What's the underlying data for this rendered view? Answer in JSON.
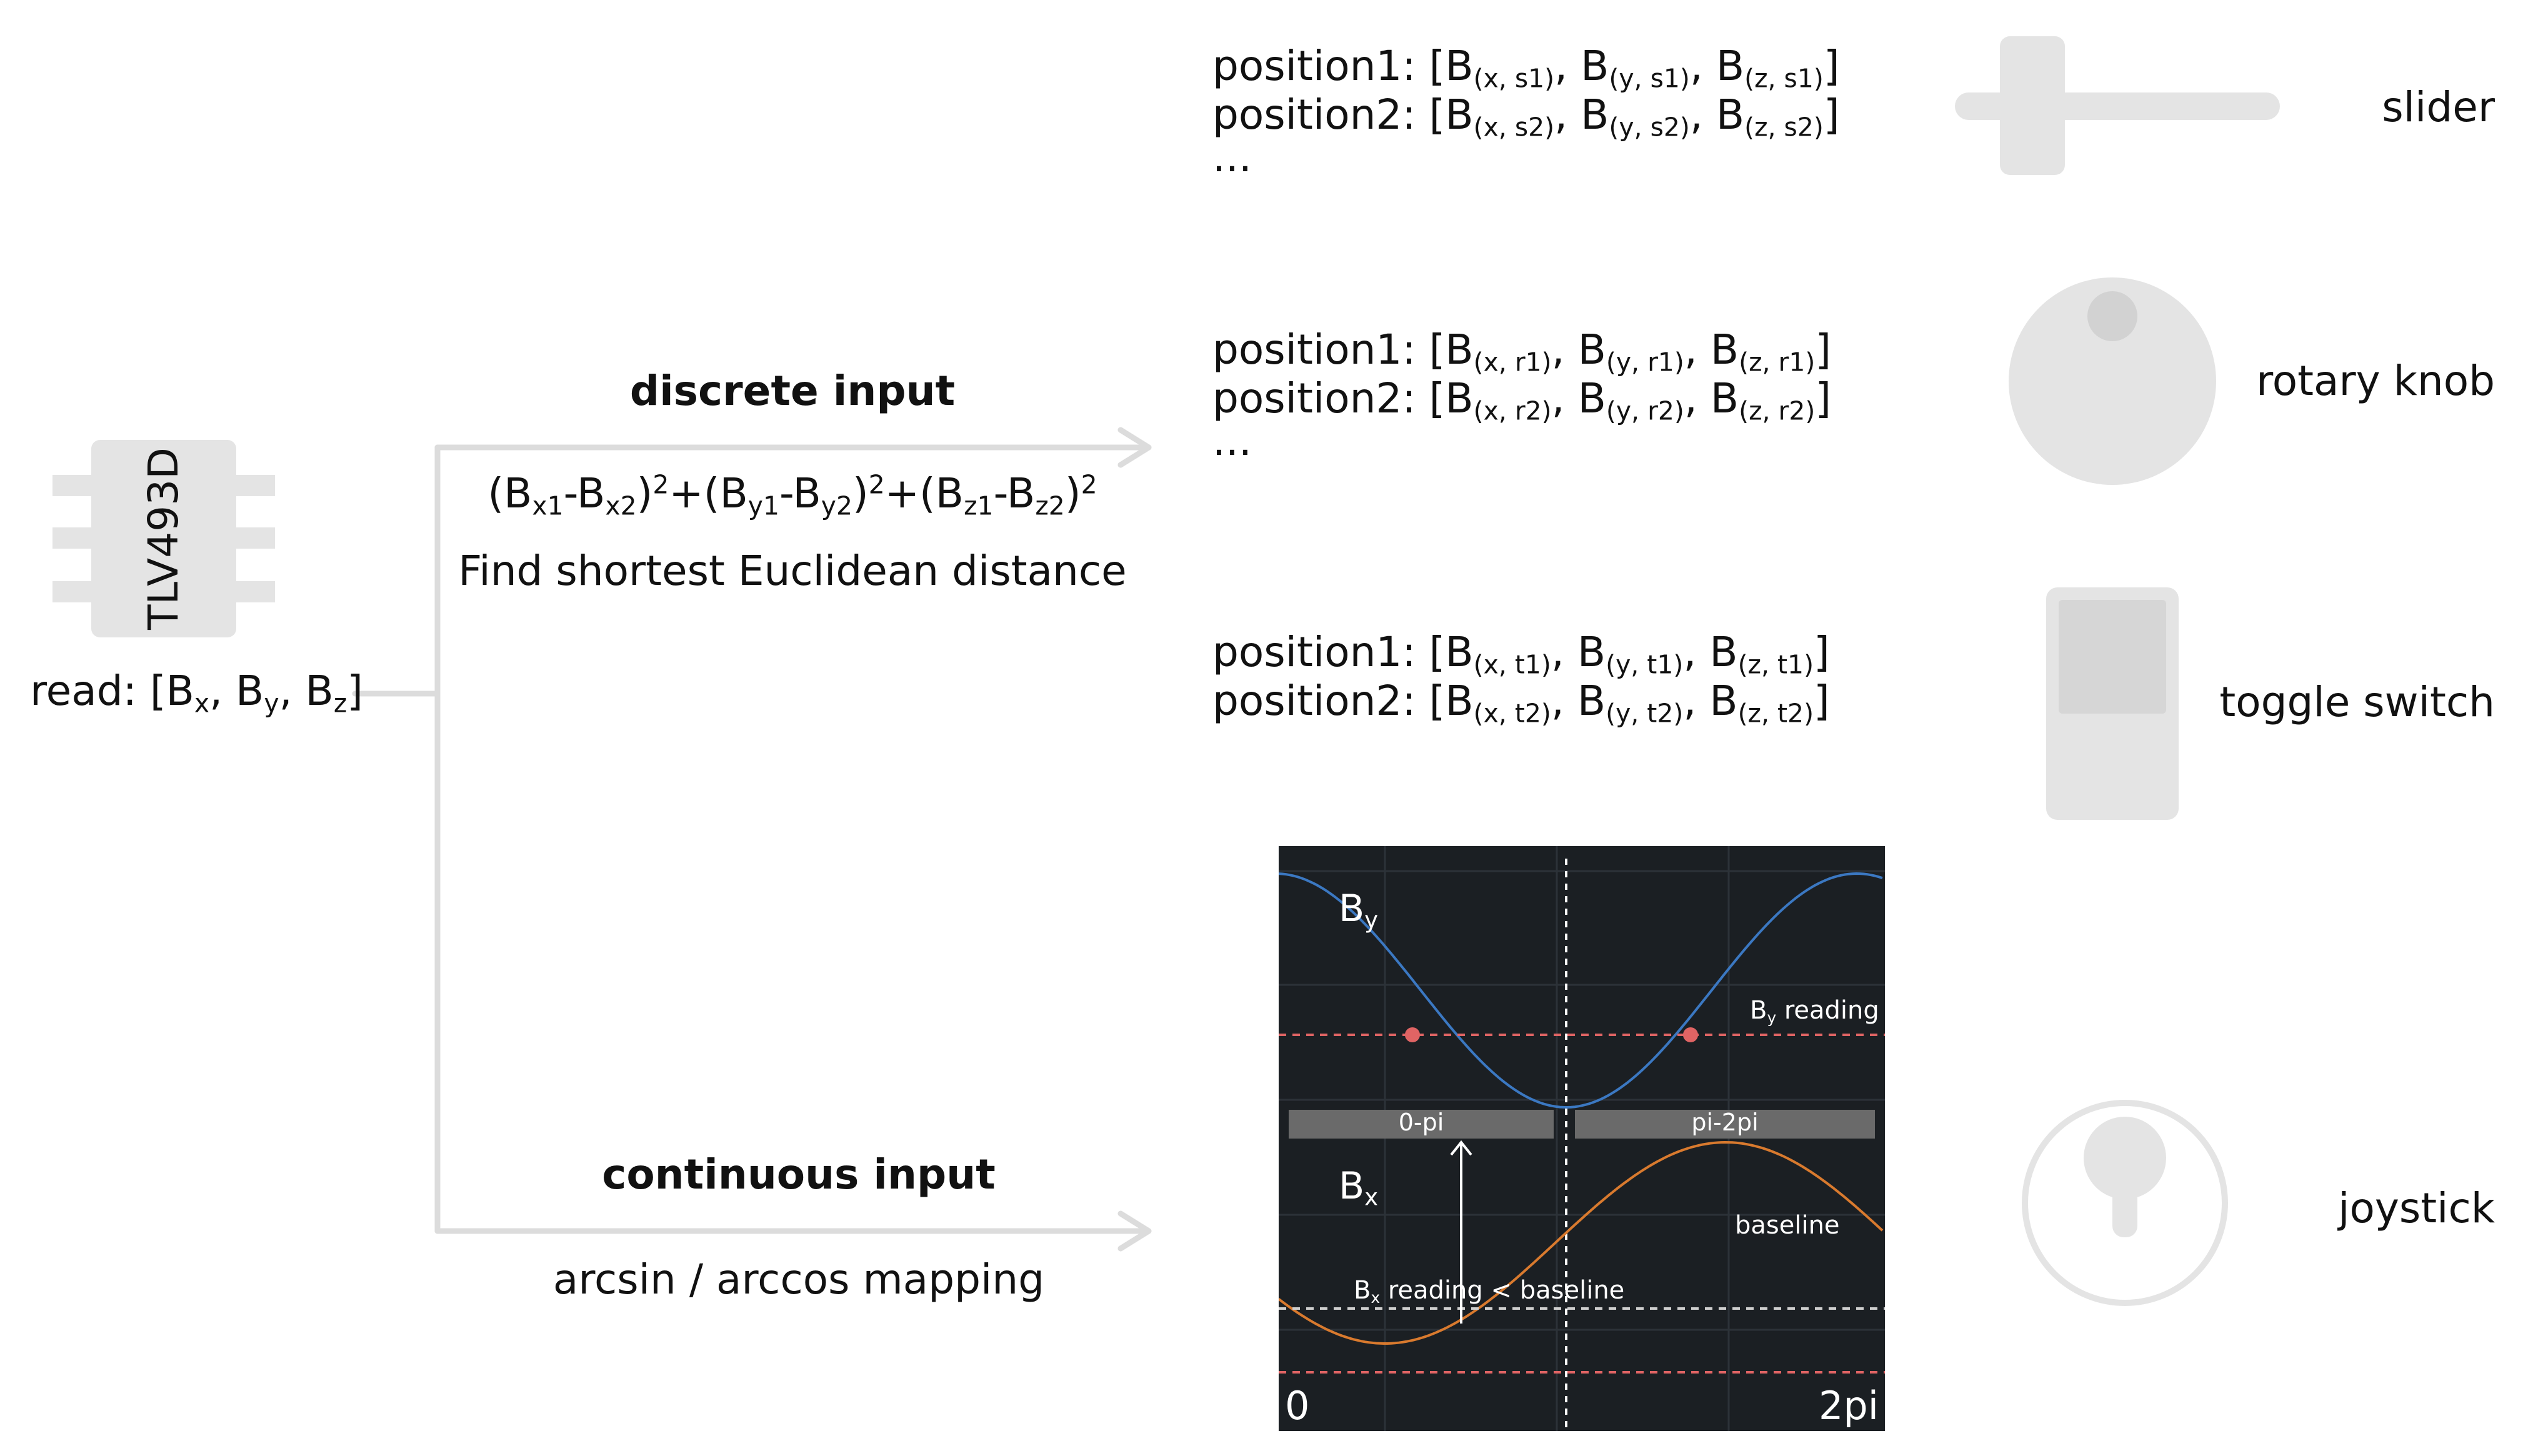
{
  "chip": {
    "label": "TLV493D",
    "read": {
      "prefix": "read: [B",
      "x": "x",
      "sep1": ", B",
      "y": "y",
      "sep2": ", B",
      "z": "z",
      "suffix": "]"
    }
  },
  "discrete": {
    "title": "discrete input",
    "formula": {
      "p1": "(B",
      "s1": "x1",
      "p2": "-B",
      "s2": "x2",
      "p3": ")",
      "e1": "2",
      "p4": "+(B",
      "s3": "y1",
      "p5": "-B",
      "s4": "y2",
      "p6": ")",
      "e2": "2",
      "p7": "+(B",
      "s5": "z1",
      "p8": "-B",
      "s6": "z2",
      "p9": ")",
      "e3": "2"
    },
    "description": "Find shortest Euclidean distance"
  },
  "continuous": {
    "title": "continuous input",
    "description": "arcsin / arccos mapping"
  },
  "position_groups": [
    {
      "rows": [
        {
          "lead": "position1: [B",
          "a": "(x, s1)",
          "b": "(y, s1)",
          "c": "(z, s1)"
        },
        {
          "lead": "position2: [B",
          "a": "(x, s2)",
          "b": "(y, s2)",
          "c": "(z, s2)"
        }
      ],
      "ellipsis": "..."
    },
    {
      "rows": [
        {
          "lead": "position1: [B",
          "a": "(x, r1)",
          "b": "(y, r1)",
          "c": "(z, r1)"
        },
        {
          "lead": "position2: [B",
          "a": "(x, r2)",
          "b": "(y, r2)",
          "c": "(z, r2)"
        }
      ],
      "ellipsis": "..."
    },
    {
      "rows": [
        {
          "lead": "position1: [B",
          "a": "(x, t1)",
          "b": "(y, t1)",
          "c": "(z, t1)"
        },
        {
          "lead": "position2: [B",
          "a": "(x, t2)",
          "b": "(y, t2)",
          "c": "(z, t2)"
        }
      ]
    }
  ],
  "sep": ", B",
  "close": "]",
  "devices": {
    "slider": "slider",
    "rotary_knob": "rotary knob",
    "toggle_switch": "toggle switch",
    "joystick": "joystick"
  },
  "plot": {
    "by_label": "B",
    "by_sub": "y",
    "bx_label": "B",
    "bx_sub": "x",
    "by_reading": "B",
    "by_reading_sub": "y",
    "by_reading_suffix": " reading",
    "bx_reading": "B",
    "bx_reading_sub": "x",
    "bx_reading_suffix": " reading < baseline",
    "baseline": "baseline",
    "range_left": "0-pi",
    "range_right": "pi-2pi",
    "x_start": "0",
    "x_end": "2pi"
  },
  "colors": {
    "plot_bg": "#1b1f23",
    "by_curve": "#3b78c2",
    "bx_curve": "#d97a2e",
    "reading_line": "#e06464",
    "device_grey": "#e4e4e4",
    "connector": "#dcdcdc"
  }
}
